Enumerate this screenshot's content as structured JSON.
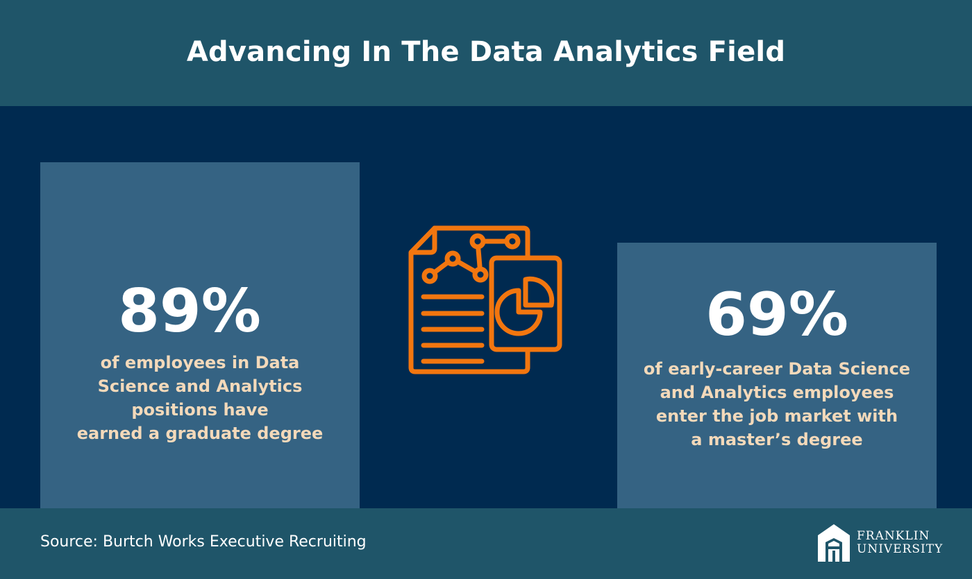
{
  "header": {
    "title": "Advancing In The Data Analytics Field"
  },
  "stats": [
    {
      "value": "89%",
      "description": "of employees in Data\nScience and Analytics\npositions have\nearned a graduate degree"
    },
    {
      "value": "69%",
      "description": "of early-career Data Science\nand Analytics employees\nenter the job market with\na master’s degree"
    }
  ],
  "center_icon": {
    "name": "report-chart-icon",
    "color": "#f2760f"
  },
  "footer": {
    "source": "Source: Burtch Works Executive Recruiting",
    "logo": {
      "line1": "FRANKLIN",
      "line2": "UNIVERSITY"
    }
  },
  "colors": {
    "background": "#002a50",
    "header_footer": "#1f5569",
    "card": "#356383",
    "description_text": "#f3d9ba",
    "accent": "#f2760f"
  }
}
